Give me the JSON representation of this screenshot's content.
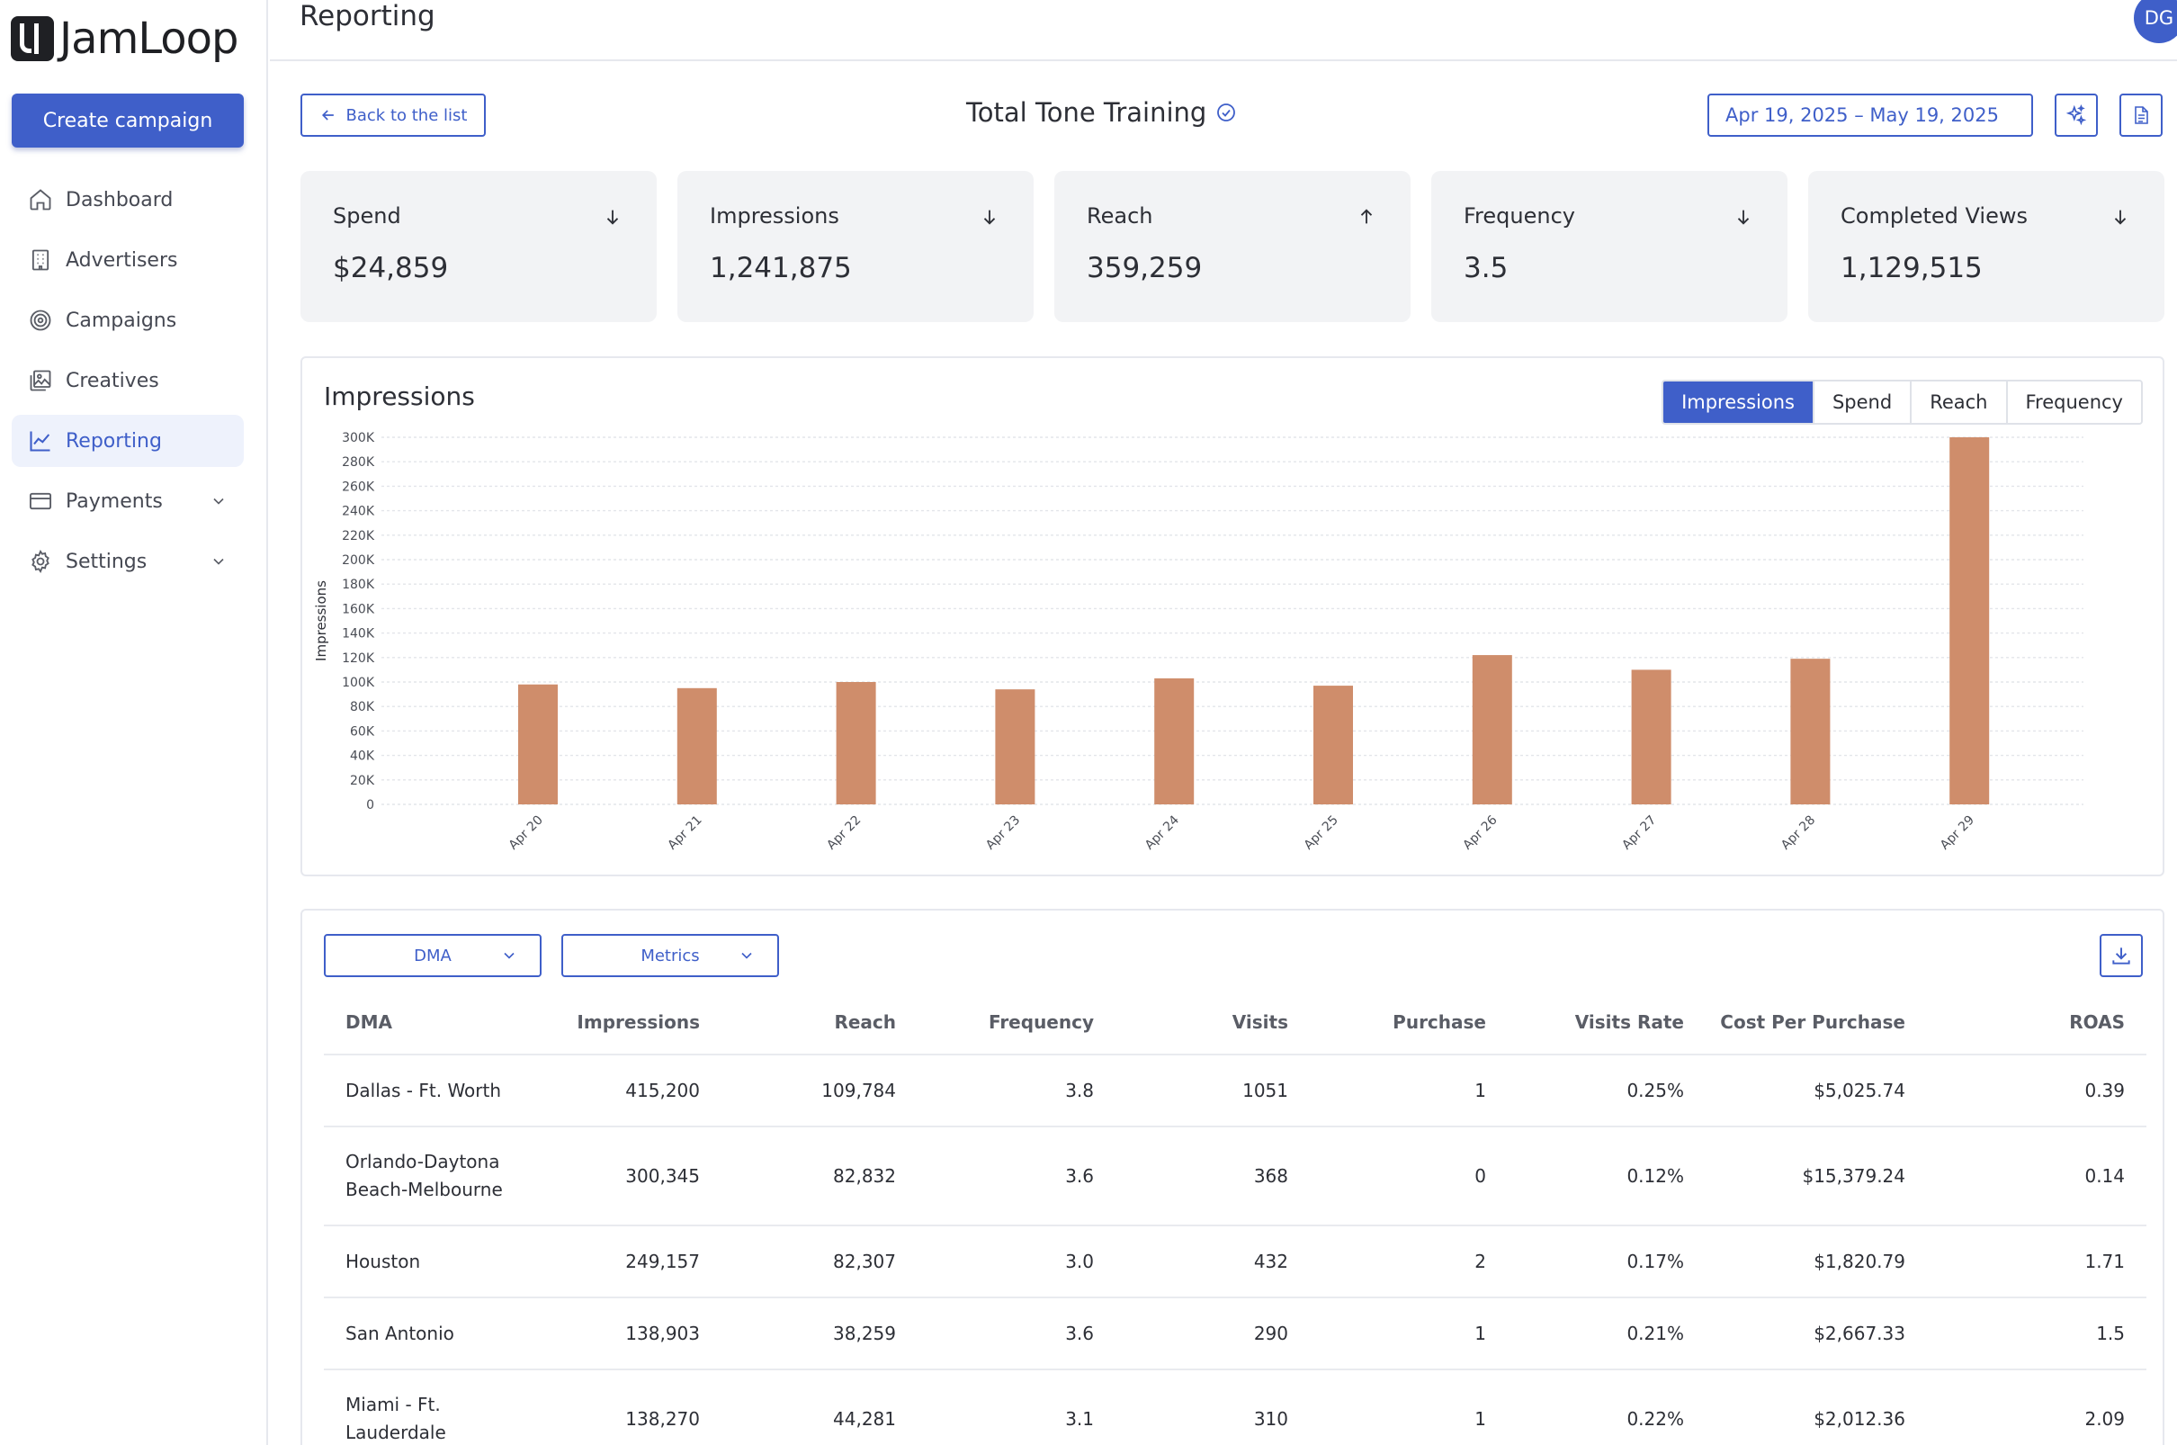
{
  "app": {
    "logo_text": "JamLoop",
    "create_button": "Create campaign",
    "avatar_initials": "DG"
  },
  "sidebar": {
    "items": [
      {
        "label": "Dashboard",
        "icon": "home-icon"
      },
      {
        "label": "Advertisers",
        "icon": "building-icon"
      },
      {
        "label": "Campaigns",
        "icon": "target-icon"
      },
      {
        "label": "Creatives",
        "icon": "image-icon"
      },
      {
        "label": "Reporting",
        "icon": "line-chart-icon",
        "active": true
      },
      {
        "label": "Payments",
        "icon": "credit-card-icon",
        "expandable": true
      },
      {
        "label": "Settings",
        "icon": "gear-icon",
        "expandable": true
      }
    ]
  },
  "header": {
    "page_title": "Reporting",
    "back_label": "Back to the list",
    "campaign_title": "Total Tone Training",
    "date_range": "Apr 19, 2025 – May 19, 2025"
  },
  "kpis": [
    {
      "label": "Spend",
      "value": "$24,859",
      "trend": "down"
    },
    {
      "label": "Impressions",
      "value": "1,241,875",
      "trend": "down"
    },
    {
      "label": "Reach",
      "value": "359,259",
      "trend": "up"
    },
    {
      "label": "Frequency",
      "value": "3.5",
      "trend": "down"
    },
    {
      "label": "Completed Views",
      "value": "1,129,515",
      "trend": "down"
    }
  ],
  "chart_panel": {
    "title": "Impressions",
    "tabs": [
      "Impressions",
      "Spend",
      "Reach",
      "Frequency"
    ],
    "active_tab": "Impressions"
  },
  "chart_data": {
    "type": "bar",
    "title": "Impressions",
    "ylabel": "Impressions",
    "xlabel": "",
    "categories": [
      "Apr 20",
      "Apr 21",
      "Apr 22",
      "Apr 23",
      "Apr 24",
      "Apr 25",
      "Apr 26",
      "Apr 27",
      "Apr 28",
      "Apr 29"
    ],
    "values": [
      98000,
      95000,
      100000,
      94000,
      103000,
      97000,
      122000,
      110000,
      119000,
      300000
    ],
    "ylim": [
      0,
      300000
    ],
    "yticks": [
      "0",
      "20K",
      "40K",
      "60K",
      "80K",
      "100K",
      "120K",
      "140K",
      "160K",
      "180K",
      "200K",
      "220K",
      "240K",
      "260K",
      "280K",
      "300K"
    ],
    "grid": true,
    "bar_color": "#cf8d6b"
  },
  "table": {
    "dma_dropdown": "DMA",
    "metrics_dropdown": "Metrics",
    "columns": [
      "DMA",
      "Impressions",
      "Reach",
      "Frequency",
      "Visits",
      "Purchase",
      "Visits Rate",
      "Cost Per Purchase",
      "ROAS"
    ],
    "rows": [
      [
        "Dallas - Ft. Worth",
        "415,200",
        "109,784",
        "3.8",
        "1051",
        "1",
        "0.25%",
        "$5,025.74",
        "0.39"
      ],
      [
        "Orlando-Daytona Beach-Melbourne",
        "300,345",
        "82,832",
        "3.6",
        "368",
        "0",
        "0.12%",
        "$15,379.24",
        "0.14"
      ],
      [
        "Houston",
        "249,157",
        "82,307",
        "3.0",
        "432",
        "2",
        "0.17%",
        "$1,820.79",
        "1.71"
      ],
      [
        "San Antonio",
        "138,903",
        "38,259",
        "3.6",
        "290",
        "1",
        "0.21%",
        "$2,667.33",
        "1.5"
      ],
      [
        "Miami - Ft. Lauderdale",
        "138,270",
        "44,281",
        "3.1",
        "310",
        "1",
        "0.22%",
        "$2,012.36",
        "2.09"
      ]
    ]
  },
  "colors": {
    "accent": "#3f5fc9",
    "bar": "#cf8d6b",
    "card_bg": "#f2f3f5"
  }
}
